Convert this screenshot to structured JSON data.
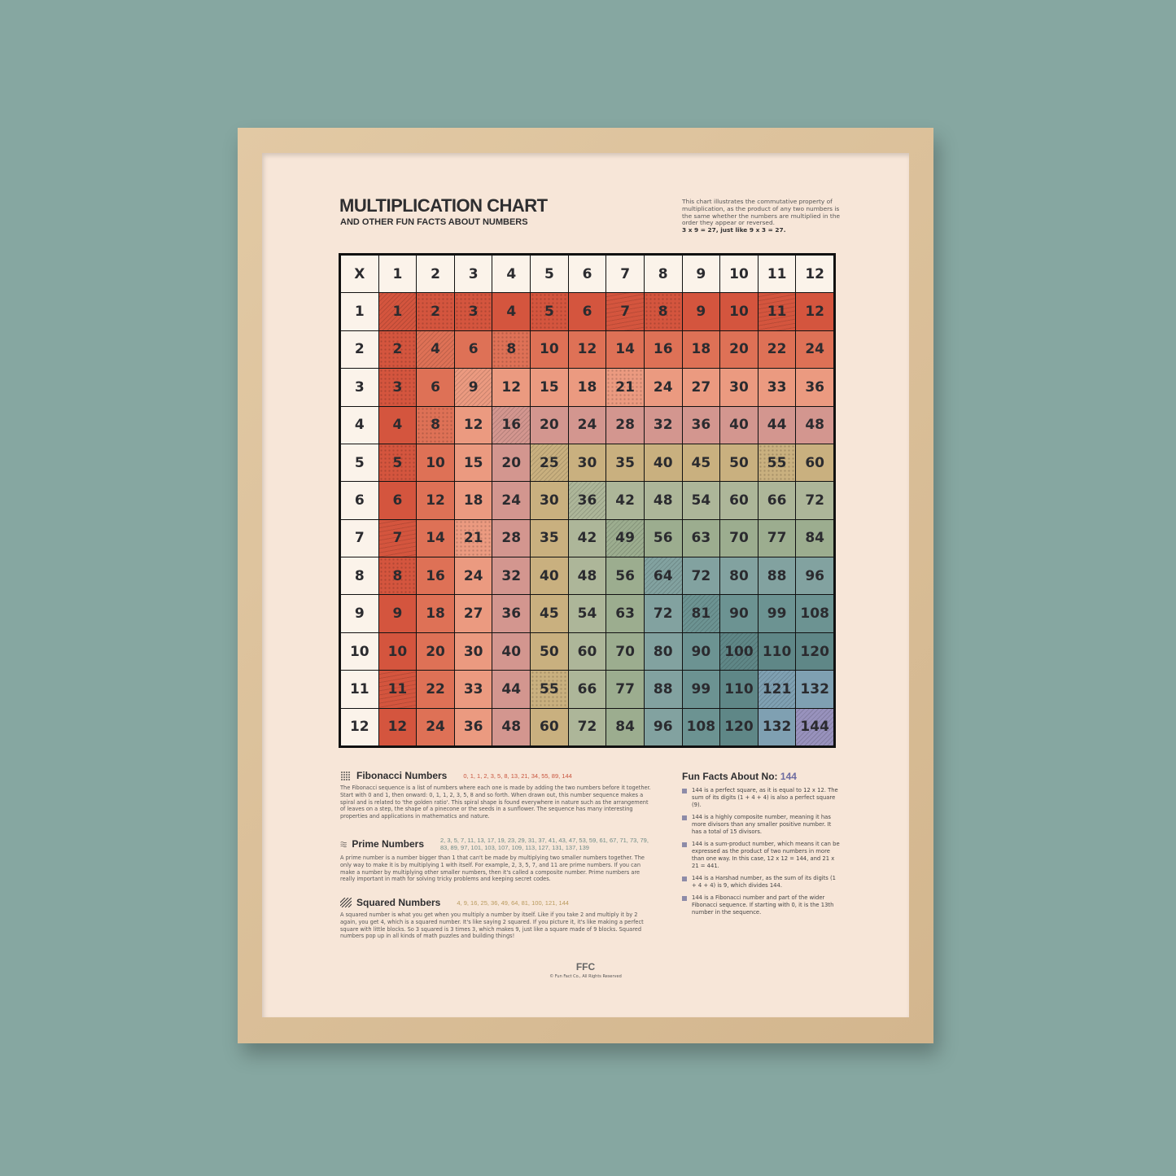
{
  "title": "MULTIPLICATION CHART",
  "subtitle": "AND OTHER FUN FACTS ABOUT NUMBERS",
  "intro": "This chart illustrates the commutative property of multiplication, as the product of any two numbers is the same whether the numbers are multiplied in the order they appear or reversed.",
  "intro_example": "3 x 9 = 27, just like 9 x 3 = 27.",
  "table": {
    "corner": "X",
    "headers": [
      "1",
      "2",
      "3",
      "4",
      "5",
      "6",
      "7",
      "8",
      "9",
      "10",
      "11",
      "12"
    ],
    "rows": [
      [
        "1",
        "2",
        "3",
        "4",
        "5",
        "6",
        "7",
        "8",
        "9",
        "10",
        "11",
        "12"
      ],
      [
        "2",
        "4",
        "6",
        "8",
        "10",
        "12",
        "14",
        "16",
        "18",
        "20",
        "22",
        "24"
      ],
      [
        "3",
        "6",
        "9",
        "12",
        "15",
        "18",
        "21",
        "24",
        "27",
        "30",
        "33",
        "36"
      ],
      [
        "4",
        "8",
        "12",
        "16",
        "20",
        "24",
        "28",
        "32",
        "36",
        "40",
        "44",
        "48"
      ],
      [
        "5",
        "10",
        "15",
        "20",
        "25",
        "30",
        "35",
        "40",
        "45",
        "50",
        "55",
        "60"
      ],
      [
        "6",
        "12",
        "18",
        "24",
        "30",
        "36",
        "42",
        "48",
        "54",
        "60",
        "66",
        "72"
      ],
      [
        "7",
        "14",
        "21",
        "28",
        "35",
        "42",
        "49",
        "56",
        "63",
        "70",
        "77",
        "84"
      ],
      [
        "8",
        "16",
        "24",
        "32",
        "40",
        "48",
        "56",
        "64",
        "72",
        "80",
        "88",
        "96"
      ],
      [
        "9",
        "18",
        "27",
        "36",
        "45",
        "54",
        "63",
        "72",
        "81",
        "90",
        "99",
        "108"
      ],
      [
        "10",
        "20",
        "30",
        "40",
        "50",
        "60",
        "70",
        "80",
        "90",
        "100",
        "110",
        "120"
      ],
      [
        "11",
        "22",
        "33",
        "44",
        "55",
        "66",
        "77",
        "88",
        "99",
        "110",
        "121",
        "132"
      ],
      [
        "12",
        "24",
        "36",
        "48",
        "60",
        "72",
        "84",
        "96",
        "108",
        "120",
        "132",
        "144"
      ]
    ],
    "band_colors": [
      "#d4553e",
      "#de7156",
      "#eb9a80",
      "#d3968f",
      "#c9b07f",
      "#adb699",
      "#9cad8f",
      "#82a2a0",
      "#6c9392",
      "#5f8787",
      "#7fa0b2",
      "#9892bd"
    ]
  },
  "fibonacci": {
    "icon": "dots-icon",
    "title": "Fibonacci Numbers",
    "sequence": "0, 1, 1, 2, 3, 5, 8, 13, 21, 34, 55, 89, 144",
    "color": "#c8553f",
    "text": "The Fibonacci sequence is a list of numbers where each one is made by adding the two numbers before it together. Start with 0 and 1, then onward: 0, 1, 1, 2, 3, 5, 8 and so forth. When drawn out, this number sequence makes a spiral and is related to 'the golden ratio'. This spiral shape is found everywhere in nature such as the arrangement of leaves on a step, the shape of a pinecone or the seeds in a sunflower. The sequence has many interesting properties and applications in mathematics and nature."
  },
  "primes": {
    "icon": "waves-icon",
    "title": "Prime Numbers",
    "sequence": "2, 3, 5, 7, 11, 13, 17, 19, 23, 29, 31, 37, 41, 43, 47, 53, 59, 61, 67, 71, 73, 79, 83, 89, 97, 101, 103, 107, 109, 113, 127, 131, 137, 139",
    "color": "#6d8a86",
    "text": "A prime number is a number bigger than 1 that can't be made by multiplying two smaller numbers together. The only way to make it is by multiplying 1 with itself. For example, 2, 3, 5, 7, and 11 are prime numbers. If you can make a number by multiplying other smaller numbers, then it's called a composite number. Prime numbers are really important in math for solving tricky problems and keeping secret codes."
  },
  "squares": {
    "icon": "hatch-icon",
    "title": "Squared Numbers",
    "sequence": "4, 9, 16, 25, 36, 49, 64, 81, 100, 121, 144",
    "color": "#b99a5e",
    "text": "A squared number is what you get when you multiply a number by itself. Like if you take 2 and multiply it by 2 again, you get 4, which is a squared number. It's like saying 2 squared. If you picture it, it's like making a perfect square with little blocks. So 3 squared is 3 times 3, which makes 9, just like a square made of 9 blocks. Squared numbers pop up in all kinds of math puzzles and building things!"
  },
  "facts": {
    "title": "Fun Facts About No:",
    "number": "144",
    "items": [
      "144 is a perfect square, as it is equal to 12 x 12. The sum of its digits (1 + 4 + 4) is also a perfect square (9).",
      "144 is a highly composite number, meaning it has more divisors than any smaller positive number. It has a total of 15 divisors.",
      "144 is a sum-product number, which means it can be expressed as the product of two numbers in more than one way. In this case, 12 x 12 = 144, and 21 x 21 = 441.",
      "144 is a Harshad number, as the sum of its digits (1 + 4 + 4) is 9, which divides 144.",
      "144 is a Fibonacci number and part of the wider Fibonacci sequence. If starting with 0, it is the 13th number in the sequence."
    ]
  },
  "footer": {
    "logo": "FFC",
    "copyright": "© Fun Fact Co., All Rights Reserved"
  }
}
